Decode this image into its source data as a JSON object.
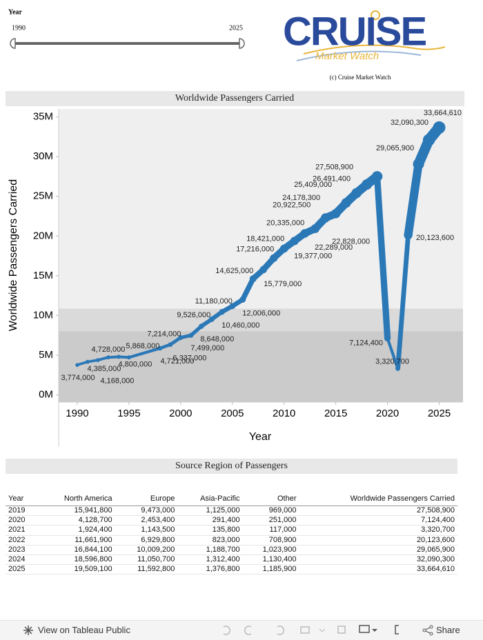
{
  "slider": {
    "title": "Year",
    "range": [
      1990,
      2025
    ]
  },
  "logo": {
    "title": "CRUISE",
    "subtitle": "Market Watch",
    "copyright": "(c) Cruise Market Watch"
  },
  "chart_data": {
    "type": "line",
    "title": "Worldwide Passengers Carried",
    "x_label": "Year",
    "y_label": "Worldwide Passengers Carried",
    "x": [
      1990,
      1991,
      1992,
      1993,
      1994,
      1995,
      1998,
      1999,
      2000,
      2001,
      2002,
      2003,
      2004,
      2005,
      2006,
      2007,
      2008,
      2009,
      2010,
      2011,
      2012,
      2013,
      2014,
      2015,
      2016,
      2017,
      2018,
      2019,
      2020,
      2021,
      2022,
      2023,
      2024,
      2025
    ],
    "values": [
      3774000,
      4168000,
      4385000,
      4728000,
      4800000,
      4721000,
      5868000,
      6337000,
      7214000,
      7499000,
      8648000,
      9526000,
      10460000,
      11180000,
      12006000,
      14625000,
      15779000,
      17216000,
      18421000,
      19377000,
      20335000,
      20922500,
      22289000,
      22828000,
      24178300,
      25409000,
      26491400,
      27508900,
      7124400,
      3320700,
      20123600,
      29065900,
      32090300,
      33664610
    ],
    "value_labels": [
      "3,774,000",
      "4,168,000",
      "4,385,000",
      "4,728,000",
      "4,800,000",
      "4,721,000",
      "5,868,000",
      "6,337,000",
      "7,214,000",
      "7,499,000",
      "8,648,000",
      "9,526,000",
      "10,460,000",
      "11,180,000",
      "12,006,000",
      "14,625,000",
      "15,779,000",
      "17,216,000",
      "18,421,000",
      "19,377,000",
      "20,335,000",
      "20,922,500",
      "22,289,000",
      "22,828,000",
      "24,178,300",
      "25,409,000",
      "26,491,400",
      "27,508,900",
      "7,124,400",
      "3,320,700",
      "20,123,600",
      "29,065,900",
      "32,090,300",
      "33,664,610"
    ],
    "color": "#2b78b7",
    "xlim": [
      1988.2,
      2027.3
    ],
    "xticks": [
      1990,
      1995,
      2000,
      2005,
      2010,
      2015,
      2020,
      2025
    ],
    "ylim": [
      -900000,
      36000000
    ],
    "yticks": [
      {
        "value": 0,
        "label": "0M"
      },
      {
        "value": 5000000,
        "label": "5M"
      },
      {
        "value": 10000000,
        "label": "10M"
      },
      {
        "value": 15000000,
        "label": "15M"
      },
      {
        "value": 20000000,
        "label": "20M"
      },
      {
        "value": 25000000,
        "label": "25M"
      },
      {
        "value": 30000000,
        "label": "30M"
      },
      {
        "value": 35000000,
        "label": "35M"
      }
    ],
    "reference_bands": [
      {
        "from": -900000,
        "to": 8000000,
        "color": "#cbcbcb"
      },
      {
        "from": 8000000,
        "to": 10860000,
        "color": "#dadada"
      }
    ]
  },
  "table": {
    "title": "Source Region of Passengers",
    "columns": [
      "Year",
      "North America",
      "Europe",
      "Asia-Pacific",
      "Other",
      "Worldwide Passengers Carried"
    ],
    "rows": [
      [
        "2019",
        "15,941,800",
        "9,473,000",
        "1,125,000",
        "969,000",
        "27,508,900"
      ],
      [
        "2020",
        "4,128,700",
        "2,453,400",
        "291,400",
        "251,000",
        "7,124,400"
      ],
      [
        "2021",
        "1,924,400",
        "1,143,500",
        "135,800",
        "117,000",
        "3,320,700"
      ],
      [
        "2022",
        "11,661,900",
        "6,929,800",
        "823,000",
        "708,900",
        "20,123,600"
      ],
      [
        "2023",
        "16,844,100",
        "10,009,200",
        "1,188,700",
        "1,023,900",
        "29,065,900"
      ],
      [
        "2024",
        "18,596,800",
        "11,050,700",
        "1,312,400",
        "1,130,400",
        "32,090,300"
      ],
      [
        "2025",
        "19,509,100",
        "11,592,800",
        "1,376,800",
        "1,185,900",
        "33,664,610"
      ]
    ]
  },
  "toolbar": {
    "view": "View on Tableau Public",
    "share": "Share"
  }
}
